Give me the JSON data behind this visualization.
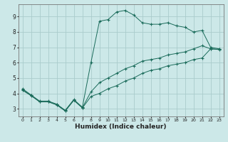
{
  "xlabel": "Humidex (Indice chaleur)",
  "bg_color": "#cce8e8",
  "grid_color": "#aacccc",
  "line_color": "#1a6b5a",
  "x_ticks": [
    0,
    1,
    2,
    3,
    4,
    5,
    6,
    7,
    8,
    9,
    10,
    11,
    12,
    13,
    14,
    15,
    16,
    17,
    18,
    19,
    20,
    21,
    22,
    23
  ],
  "y_ticks": [
    3,
    4,
    5,
    6,
    7,
    8,
    9
  ],
  "xlim": [
    -0.5,
    23.5
  ],
  "ylim": [
    2.5,
    9.8
  ],
  "series_max": [
    4.3,
    3.9,
    3.5,
    3.5,
    3.3,
    2.9,
    3.6,
    3.1,
    6.0,
    8.7,
    8.8,
    9.3,
    9.4,
    9.1,
    8.6,
    8.5,
    8.5,
    8.6,
    8.4,
    8.3,
    8.0,
    8.1,
    7.0,
    6.9
  ],
  "series_min": [
    4.2,
    3.85,
    3.45,
    3.45,
    3.25,
    2.85,
    3.55,
    3.05,
    3.8,
    4.0,
    4.3,
    4.5,
    4.8,
    5.0,
    5.3,
    5.5,
    5.6,
    5.8,
    5.9,
    6.0,
    6.2,
    6.3,
    6.9,
    6.85
  ],
  "series_mean": [
    4.25,
    3.87,
    3.47,
    3.47,
    3.27,
    2.87,
    3.57,
    3.07,
    4.1,
    4.7,
    5.0,
    5.3,
    5.6,
    5.8,
    6.1,
    6.2,
    6.3,
    6.5,
    6.6,
    6.7,
    6.9,
    7.1,
    6.9,
    6.87
  ]
}
